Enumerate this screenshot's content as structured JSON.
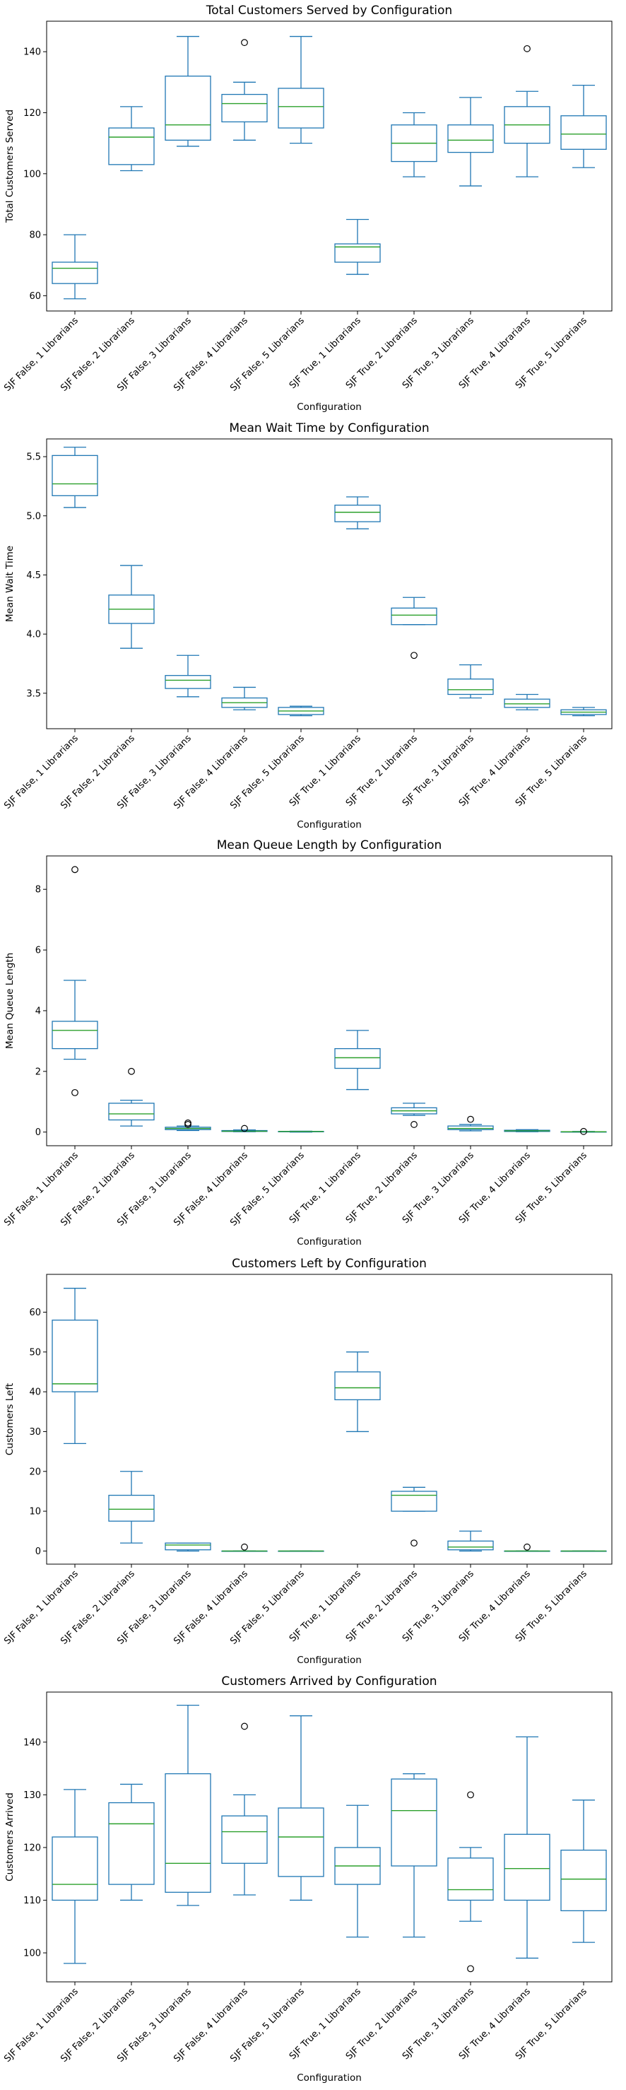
{
  "colors": {
    "box": "#1f77b4",
    "median": "#2ca02c",
    "axes": "#000000",
    "outlier": "#000000",
    "background": "#ffffff"
  },
  "chart_data": [
    {
      "type": "box",
      "title": "Total Customers Served by Configuration",
      "xlabel": "Configuration",
      "ylabel": "Total Customers Served",
      "ylim": [
        55,
        150
      ],
      "yticks": [
        "60",
        "80",
        "100",
        "120",
        "140"
      ],
      "grid": false,
      "categories": [
        "SJF False, 1 Librarians",
        "SJF False, 2 Librarians",
        "SJF False, 3 Librarians",
        "SJF False, 4 Librarians",
        "SJF False, 5 Librarians",
        "SJF True, 1 Librarians",
        "SJF True, 2 Librarians",
        "SJF True, 3 Librarians",
        "SJF True, 4 Librarians",
        "SJF True, 5 Librarians"
      ],
      "boxes": [
        {
          "whislo": 59,
          "q1": 64,
          "med": 69,
          "q3": 71,
          "whishi": 80,
          "fliers": []
        },
        {
          "whislo": 101,
          "q1": 103,
          "med": 112,
          "q3": 115,
          "whishi": 122,
          "fliers": []
        },
        {
          "whislo": 109,
          "q1": 111,
          "med": 116,
          "q3": 132,
          "whishi": 145,
          "fliers": []
        },
        {
          "whislo": 111,
          "q1": 117,
          "med": 123,
          "q3": 126,
          "whishi": 130,
          "fliers": [
            143
          ]
        },
        {
          "whislo": 110,
          "q1": 115,
          "med": 122,
          "q3": 128,
          "whishi": 145,
          "fliers": []
        },
        {
          "whislo": 67,
          "q1": 71,
          "med": 76,
          "q3": 77,
          "whishi": 85,
          "fliers": []
        },
        {
          "whislo": 99,
          "q1": 104,
          "med": 110,
          "q3": 116,
          "whishi": 120,
          "fliers": []
        },
        {
          "whislo": 96,
          "q1": 107,
          "med": 111,
          "q3": 116,
          "whishi": 125,
          "fliers": []
        },
        {
          "whislo": 99,
          "q1": 110,
          "med": 116,
          "q3": 122,
          "whishi": 127,
          "fliers": [
            141
          ]
        },
        {
          "whislo": 102,
          "q1": 108,
          "med": 113,
          "q3": 119,
          "whishi": 129,
          "fliers": []
        }
      ]
    },
    {
      "type": "box",
      "title": "Mean Wait Time by Configuration",
      "xlabel": "Configuration",
      "ylabel": "Mean Wait Time",
      "ylim": [
        3.2,
        5.65
      ],
      "yticks": [
        "3.5",
        "4.0",
        "4.5",
        "5.0",
        "5.5"
      ],
      "grid": false,
      "categories": [
        "SJF False, 1 Librarians",
        "SJF False, 2 Librarians",
        "SJF False, 3 Librarians",
        "SJF False, 4 Librarians",
        "SJF False, 5 Librarians",
        "SJF True, 1 Librarians",
        "SJF True, 2 Librarians",
        "SJF True, 3 Librarians",
        "SJF True, 4 Librarians",
        "SJF True, 5 Librarians"
      ],
      "boxes": [
        {
          "whislo": 5.07,
          "q1": 5.17,
          "med": 5.27,
          "q3": 5.51,
          "whishi": 5.58,
          "fliers": []
        },
        {
          "whislo": 3.88,
          "q1": 4.09,
          "med": 4.21,
          "q3": 4.33,
          "whishi": 4.58,
          "fliers": []
        },
        {
          "whislo": 3.47,
          "q1": 3.54,
          "med": 3.61,
          "q3": 3.65,
          "whishi": 3.82,
          "fliers": []
        },
        {
          "whislo": 3.36,
          "q1": 3.38,
          "med": 3.42,
          "q3": 3.46,
          "whishi": 3.55,
          "fliers": []
        },
        {
          "whislo": 3.31,
          "q1": 3.32,
          "med": 3.35,
          "q3": 3.38,
          "whishi": 3.39,
          "fliers": []
        },
        {
          "whislo": 4.89,
          "q1": 4.95,
          "med": 5.03,
          "q3": 5.09,
          "whishi": 5.16,
          "fliers": []
        },
        {
          "whislo": 4.08,
          "q1": 4.08,
          "med": 4.16,
          "q3": 4.22,
          "whishi": 4.31,
          "fliers": [
            3.82
          ]
        },
        {
          "whislo": 3.46,
          "q1": 3.49,
          "med": 3.53,
          "q3": 3.62,
          "whishi": 3.74,
          "fliers": []
        },
        {
          "whislo": 3.36,
          "q1": 3.38,
          "med": 3.41,
          "q3": 3.45,
          "whishi": 3.49,
          "fliers": []
        },
        {
          "whislo": 3.31,
          "q1": 3.32,
          "med": 3.34,
          "q3": 3.36,
          "whishi": 3.38,
          "fliers": []
        }
      ]
    },
    {
      "type": "box",
      "title": "Mean Queue Length by Configuration",
      "xlabel": "Configuration",
      "ylabel": "Mean Queue Length",
      "ylim": [
        -0.45,
        9.1
      ],
      "yticks": [
        "0",
        "2",
        "4",
        "6",
        "8"
      ],
      "grid": false,
      "categories": [
        "SJF False, 1 Librarians",
        "SJF False, 2 Librarians",
        "SJF False, 3 Librarians",
        "SJF False, 4 Librarians",
        "SJF False, 5 Librarians",
        "SJF True, 1 Librarians",
        "SJF True, 2 Librarians",
        "SJF True, 3 Librarians",
        "SJF True, 4 Librarians",
        "SJF True, 5 Librarians"
      ],
      "boxes": [
        {
          "whislo": 2.4,
          "q1": 2.75,
          "med": 3.35,
          "q3": 3.65,
          "whishi": 5.0,
          "fliers": [
            1.3,
            8.65
          ]
        },
        {
          "whislo": 0.2,
          "q1": 0.4,
          "med": 0.6,
          "q3": 0.95,
          "whishi": 1.05,
          "fliers": [
            2.0
          ]
        },
        {
          "whislo": 0.05,
          "q1": 0.08,
          "med": 0.12,
          "q3": 0.16,
          "whishi": 0.2,
          "fliers": [
            0.25,
            0.3
          ]
        },
        {
          "whislo": 0.01,
          "q1": 0.02,
          "med": 0.03,
          "q3": 0.05,
          "whishi": 0.07,
          "fliers": [
            0.12
          ]
        },
        {
          "whislo": 0.0,
          "q1": 0.01,
          "med": 0.02,
          "q3": 0.02,
          "whishi": 0.03,
          "fliers": []
        },
        {
          "whislo": 1.4,
          "q1": 2.1,
          "med": 2.45,
          "q3": 2.75,
          "whishi": 3.35,
          "fliers": []
        },
        {
          "whislo": 0.55,
          "q1": 0.6,
          "med": 0.7,
          "q3": 0.8,
          "whishi": 0.95,
          "fliers": [
            0.25
          ]
        },
        {
          "whislo": 0.04,
          "q1": 0.08,
          "med": 0.12,
          "q3": 0.2,
          "whishi": 0.25,
          "fliers": [
            0.42
          ]
        },
        {
          "whislo": 0.01,
          "q1": 0.02,
          "med": 0.04,
          "q3": 0.06,
          "whishi": 0.08,
          "fliers": []
        },
        {
          "whislo": 0.0,
          "q1": 0.0,
          "med": 0.01,
          "q3": 0.01,
          "whishi": 0.02,
          "fliers": [
            0.02
          ]
        }
      ]
    },
    {
      "type": "box",
      "title": "Customers Left by Configuration",
      "xlabel": "Configuration",
      "ylabel": "Customers Left",
      "ylim": [
        -3.3,
        69.5
      ],
      "yticks": [
        "0",
        "10",
        "20",
        "30",
        "40",
        "50",
        "60"
      ],
      "grid": false,
      "categories": [
        "SJF False, 1 Librarians",
        "SJF False, 2 Librarians",
        "SJF False, 3 Librarians",
        "SJF False, 4 Librarians",
        "SJF False, 5 Librarians",
        "SJF True, 1 Librarians",
        "SJF True, 2 Librarians",
        "SJF True, 3 Librarians",
        "SJF True, 4 Librarians",
        "SJF True, 5 Librarians"
      ],
      "boxes": [
        {
          "whislo": 27,
          "q1": 40,
          "med": 42,
          "q3": 58,
          "whishi": 66,
          "fliers": []
        },
        {
          "whislo": 2,
          "q1": 7.5,
          "med": 10.5,
          "q3": 14,
          "whishi": 20,
          "fliers": []
        },
        {
          "whislo": 0,
          "q1": 0.3,
          "med": 1.5,
          "q3": 2,
          "whishi": 2,
          "fliers": []
        },
        {
          "whislo": 0,
          "q1": 0,
          "med": 0,
          "q3": 0,
          "whishi": 0,
          "fliers": [
            1
          ]
        },
        {
          "whislo": 0,
          "q1": 0,
          "med": 0,
          "q3": 0,
          "whishi": 0,
          "fliers": []
        },
        {
          "whislo": 30,
          "q1": 38,
          "med": 41,
          "q3": 45,
          "whishi": 50,
          "fliers": []
        },
        {
          "whislo": 10,
          "q1": 10,
          "med": 14,
          "q3": 15,
          "whishi": 16,
          "fliers": [
            2
          ]
        },
        {
          "whislo": 0,
          "q1": 0.3,
          "med": 1,
          "q3": 2.5,
          "whishi": 5,
          "fliers": []
        },
        {
          "whislo": 0,
          "q1": 0,
          "med": 0,
          "q3": 0,
          "whishi": 0,
          "fliers": [
            1
          ]
        },
        {
          "whislo": 0,
          "q1": 0,
          "med": 0,
          "q3": 0,
          "whishi": 0,
          "fliers": []
        }
      ]
    },
    {
      "type": "box",
      "title": "Customers Arrived by Configuration",
      "xlabel": "Configuration",
      "ylabel": "Customers Arrived",
      "ylim": [
        94.5,
        149.5
      ],
      "yticks": [
        "100",
        "110",
        "120",
        "130",
        "140"
      ],
      "grid": false,
      "categories": [
        "SJF False, 1 Librarians",
        "SJF False, 2 Librarians",
        "SJF False, 3 Librarians",
        "SJF False, 4 Librarians",
        "SJF False, 5 Librarians",
        "SJF True, 1 Librarians",
        "SJF True, 2 Librarians",
        "SJF True, 3 Librarians",
        "SJF True, 4 Librarians",
        "SJF True, 5 Librarians"
      ],
      "boxes": [
        {
          "whislo": 98,
          "q1": 110,
          "med": 113,
          "q3": 122,
          "whishi": 131,
          "fliers": []
        },
        {
          "whislo": 110,
          "q1": 113,
          "med": 124.5,
          "q3": 128.5,
          "whishi": 132,
          "fliers": []
        },
        {
          "whislo": 109,
          "q1": 111.5,
          "med": 117,
          "q3": 134,
          "whishi": 147,
          "fliers": []
        },
        {
          "whislo": 111,
          "q1": 117,
          "med": 123,
          "q3": 126,
          "whishi": 130,
          "fliers": [
            143
          ]
        },
        {
          "whislo": 110,
          "q1": 114.5,
          "med": 122,
          "q3": 127.5,
          "whishi": 145,
          "fliers": []
        },
        {
          "whislo": 103,
          "q1": 113,
          "med": 116.5,
          "q3": 120,
          "whishi": 128,
          "fliers": []
        },
        {
          "whislo": 103,
          "q1": 116.5,
          "med": 127,
          "q3": 133,
          "whishi": 134,
          "fliers": []
        },
        {
          "whislo": 106,
          "q1": 110,
          "med": 112,
          "q3": 118,
          "whishi": 120,
          "fliers": [
            130,
            97
          ]
        },
        {
          "whislo": 99,
          "q1": 110,
          "med": 116,
          "q3": 122.5,
          "whishi": 141,
          "fliers": []
        },
        {
          "whislo": 102,
          "q1": 108,
          "med": 114,
          "q3": 119.5,
          "whishi": 129,
          "fliers": []
        }
      ]
    }
  ]
}
